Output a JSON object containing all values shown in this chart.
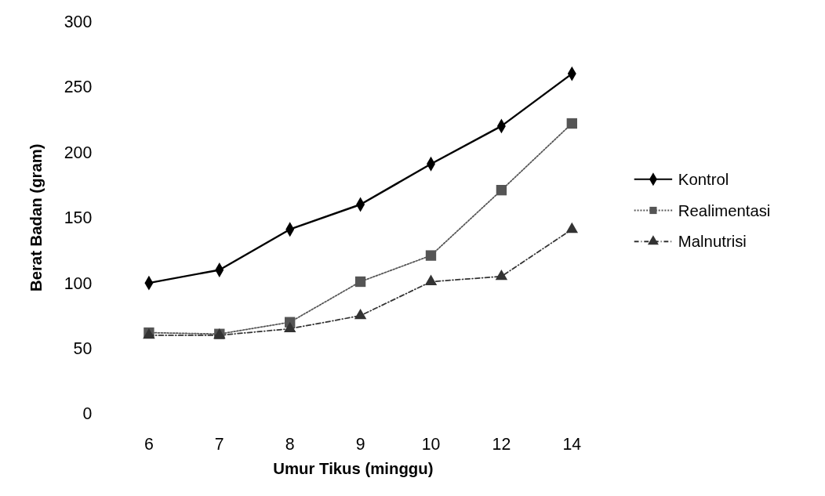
{
  "chart_data": {
    "type": "line",
    "xlabel": "Umur Tikus (minggu)",
    "ylabel": "Berat Badan (gram)",
    "categories": [
      "6",
      "7",
      "8",
      "9",
      "10",
      "12",
      "14"
    ],
    "ylim": [
      0,
      300
    ],
    "yticks": [
      0,
      50,
      100,
      150,
      200,
      250,
      300
    ],
    "grid": false,
    "legend": "right",
    "series": [
      {
        "name": "Kontrol",
        "color": "#000000",
        "marker": "diamond",
        "line_style": "solid",
        "values": [
          100,
          110,
          141,
          160,
          191,
          220,
          260
        ]
      },
      {
        "name": "Realimentasi",
        "color": "#555555",
        "marker": "square",
        "line_style": "dotted",
        "values": [
          62,
          61,
          70,
          101,
          121,
          171,
          222
        ]
      },
      {
        "name": "Malnutrisi",
        "color": "#333333",
        "marker": "triangle",
        "line_style": "dashed",
        "values": [
          60,
          60,
          65,
          75,
          101,
          105,
          141
        ]
      }
    ]
  }
}
